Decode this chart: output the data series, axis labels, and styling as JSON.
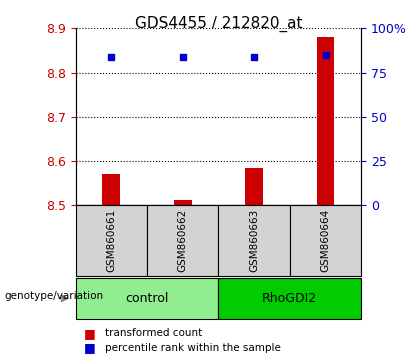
{
  "title": "GDS4455 / 212820_at",
  "samples": [
    "GSM860661",
    "GSM860662",
    "GSM860663",
    "GSM860664"
  ],
  "red_values": [
    8.57,
    8.512,
    8.585,
    8.88
  ],
  "blue_values_pct": [
    84,
    84,
    84,
    85
  ],
  "ymin": 8.5,
  "ymax": 8.9,
  "yticks_left": [
    8.5,
    8.6,
    8.7,
    8.8,
    8.9
  ],
  "yticks_right": [
    0,
    25,
    50,
    75,
    100
  ],
  "groups": [
    {
      "label": "control",
      "samples": [
        0,
        1
      ],
      "color": "#90EE90"
    },
    {
      "label": "RhoGDI2",
      "samples": [
        2,
        3
      ],
      "color": "#00CC00"
    }
  ],
  "bar_baseline": 8.5,
  "bar_color": "#CC0000",
  "dot_color": "#0000CC",
  "title_color": "#000000",
  "left_axis_color": "#CC0000",
  "right_axis_color": "#0000CC",
  "grid_color": "#000000",
  "sample_box_color": "#D3D3D3",
  "legend_red_label": "transformed count",
  "legend_blue_label": "percentile rank within the sample",
  "genotype_label": "genotype/variation"
}
